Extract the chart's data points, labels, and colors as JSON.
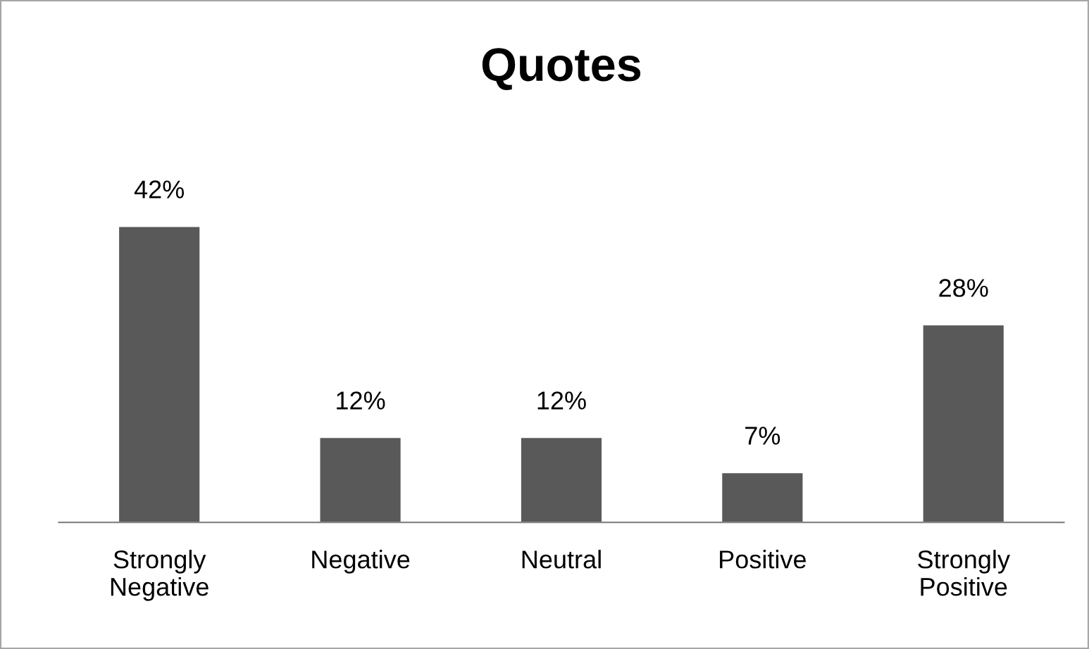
{
  "chart_data": {
    "type": "bar",
    "title": "Quotes",
    "categories": [
      "Strongly\nNegative",
      "Negative",
      "Neutral",
      "Positive",
      "Strongly\nPositive"
    ],
    "values": [
      42,
      12,
      12,
      7,
      28
    ],
    "value_labels": [
      "42%",
      "12%",
      "12%",
      "7%",
      "28%"
    ],
    "color": "#595959",
    "grid": false,
    "legend": false
  }
}
